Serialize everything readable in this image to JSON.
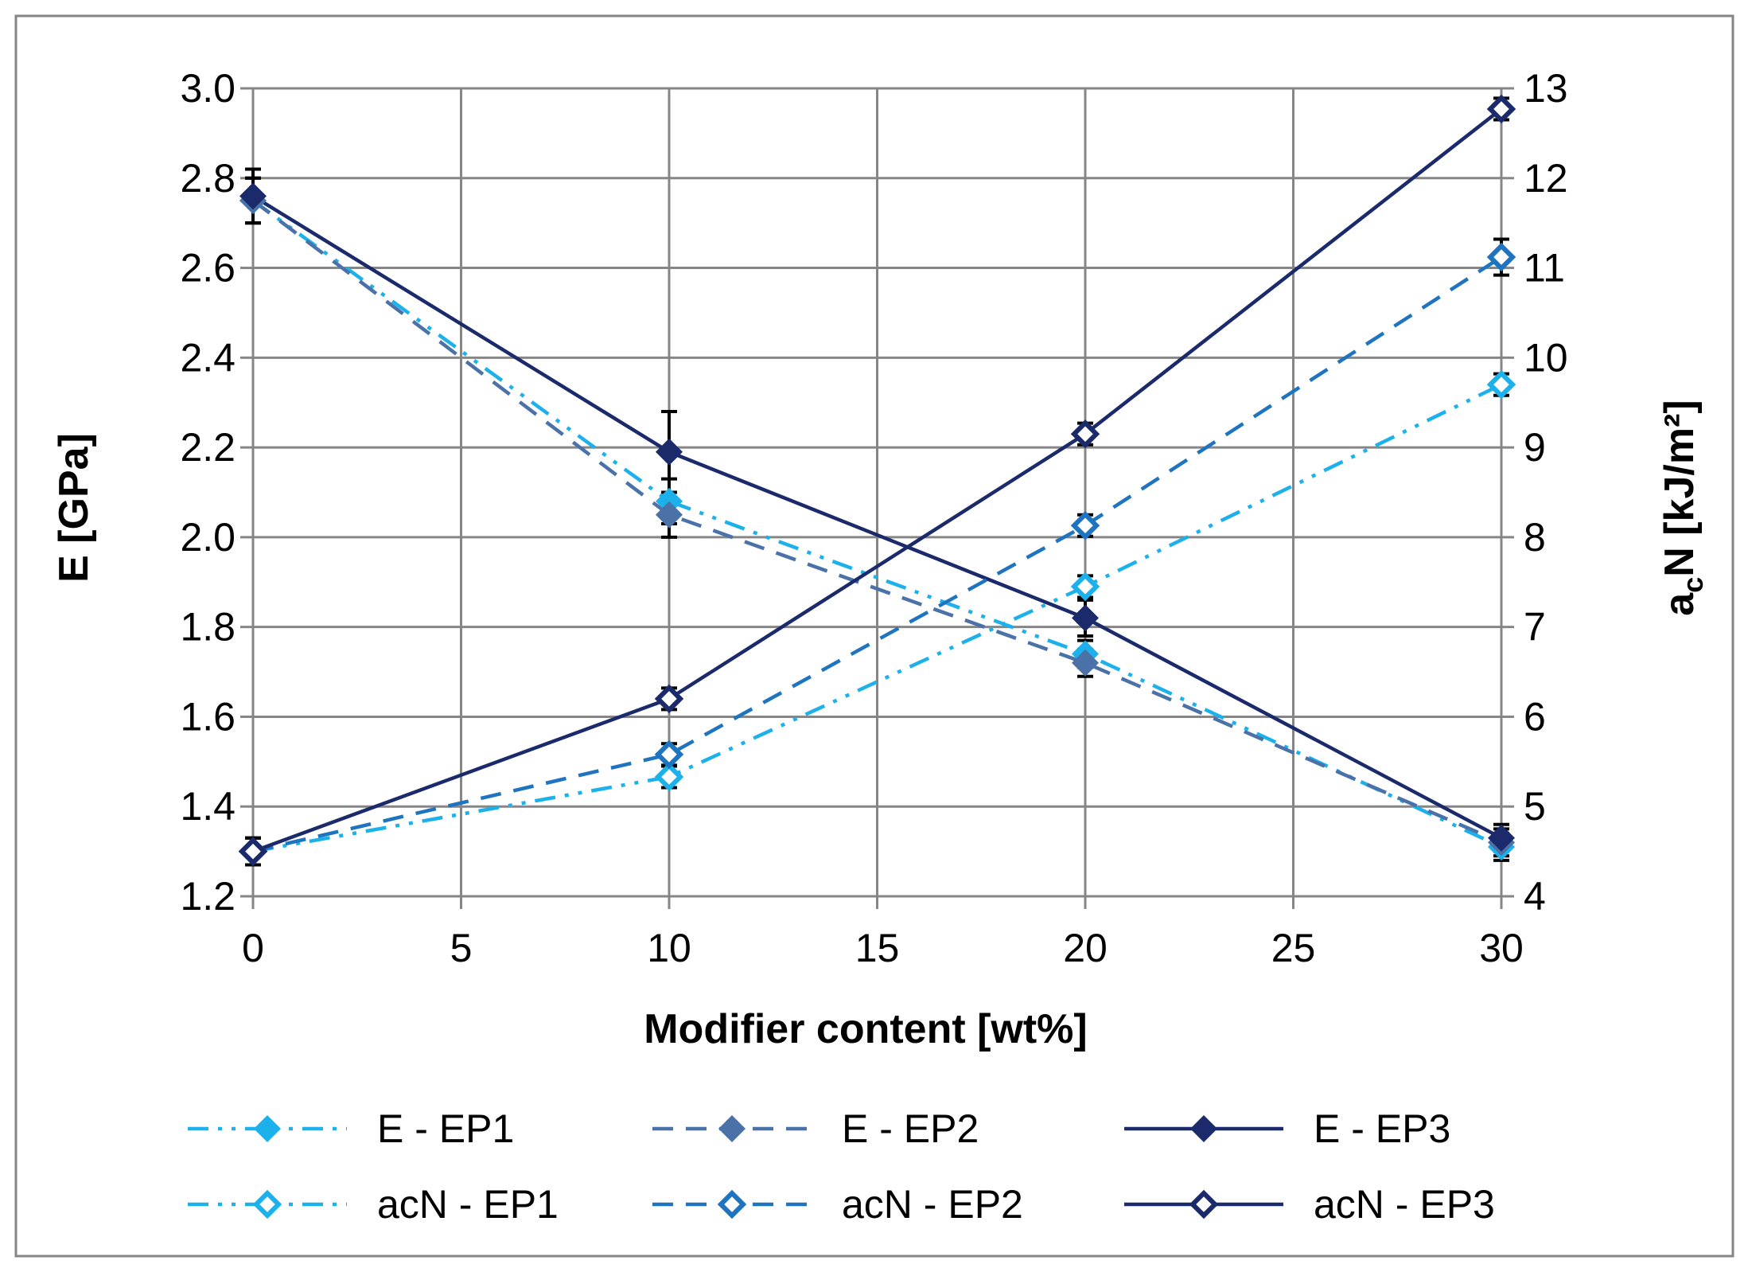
{
  "chart_data": {
    "type": "line",
    "title": "",
    "xlabel": "Modifier content [wt%]",
    "ylabel_left": "E [GPa]",
    "ylabel_right_main": "a",
    "ylabel_right_sub": "c",
    "ylabel_right_rest": "N [kJ/m²]",
    "xlim": [
      0,
      30
    ],
    "xticks": [
      "0",
      "5",
      "10",
      "15",
      "20",
      "25",
      "30"
    ],
    "ylim_left": [
      1.2,
      3.0
    ],
    "yticks_left": [
      "1.2",
      "1.4",
      "1.6",
      "1.8",
      "2.0",
      "2.2",
      "2.4",
      "2.6",
      "2.8",
      "3.0"
    ],
    "ylim_right": [
      4,
      13
    ],
    "yticks_right": [
      "4",
      "5",
      "6",
      "7",
      "8",
      "9",
      "10",
      "11",
      "12",
      "13"
    ],
    "grid": true,
    "legend_position": "bottom",
    "x": [
      0,
      10,
      20,
      30
    ],
    "series": [
      {
        "name": "E - EP1",
        "axis": "left",
        "color": "#1DB1EC",
        "dash": "dashdotdot",
        "marker": "filled",
        "values": [
          2.75,
          2.08,
          1.74,
          1.31
        ],
        "errors": [
          0.05,
          0.05,
          0.03,
          0.03
        ]
      },
      {
        "name": "E - EP2",
        "axis": "left",
        "color": "#4A72A8",
        "dash": "dash",
        "marker": "filled",
        "values": [
          2.75,
          2.05,
          1.72,
          1.32
        ],
        "errors": [
          0.05,
          0.05,
          0.03,
          0.03
        ]
      },
      {
        "name": "E - EP3",
        "axis": "left",
        "color": "#1B2A6B",
        "dash": "solid",
        "marker": "filled",
        "values": [
          2.76,
          2.19,
          1.82,
          1.33
        ],
        "errors": [
          0.06,
          0.09,
          0.04,
          0.03
        ]
      },
      {
        "name": "acN - EP1",
        "axis": "right",
        "color": "#1DB1EC",
        "dash": "dashdotdot",
        "marker": "hollow",
        "values": [
          4.5,
          5.33,
          7.45,
          9.7
        ],
        "errors": [
          0.15,
          0.12,
          0.12,
          0.12
        ]
      },
      {
        "name": "acN - EP2",
        "axis": "right",
        "color": "#1F74C0",
        "dash": "dash",
        "marker": "hollow",
        "values": [
          4.5,
          5.58,
          8.13,
          11.12
        ],
        "errors": [
          0.15,
          0.12,
          0.12,
          0.2
        ]
      },
      {
        "name": "acN - EP3",
        "axis": "right",
        "color": "#1B2A6B",
        "dash": "solid",
        "marker": "hollow",
        "values": [
          4.5,
          6.2,
          9.15,
          12.77
        ],
        "errors": [
          0.15,
          0.12,
          0.12,
          0.12
        ]
      }
    ]
  }
}
